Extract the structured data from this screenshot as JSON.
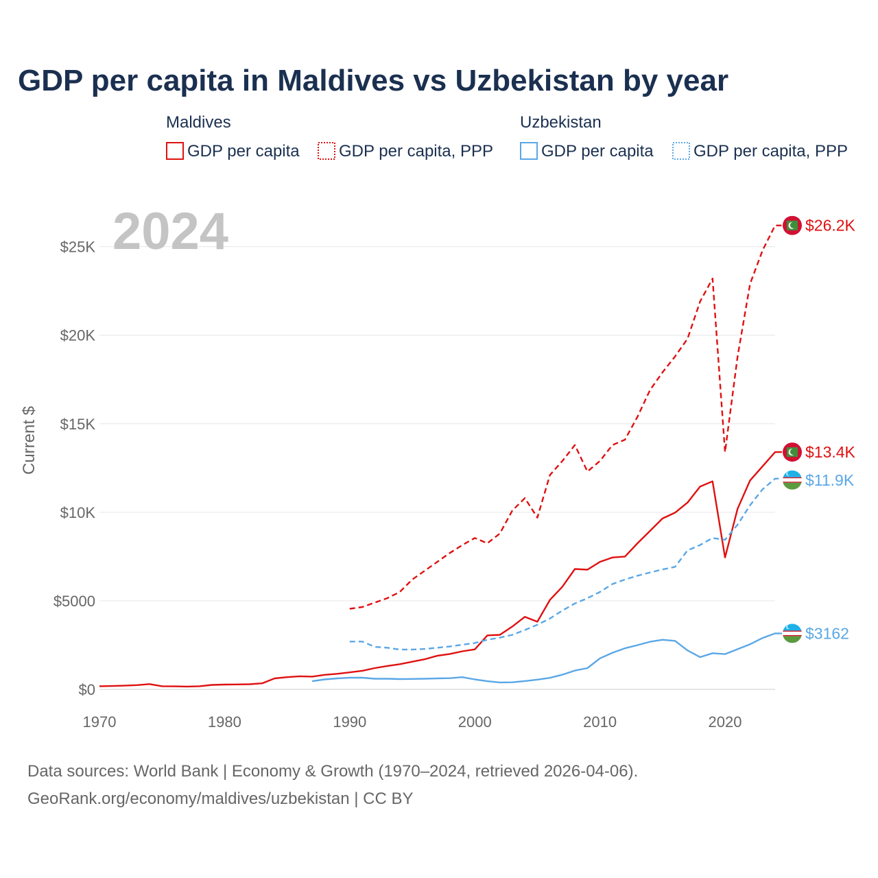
{
  "colors": {
    "maldives": "#e01010",
    "uzbekistan": "#5aa7e6"
  },
  "chart_data": {
    "type": "line",
    "title": "GDP per capita in Maldives vs Uzbekistan by year",
    "year_label": "2024",
    "xlabel": "",
    "ylabel": "Current $",
    "xlim": [
      1970,
      2024
    ],
    "ylim": [
      0,
      27000
    ],
    "x_ticks": [
      1970,
      1980,
      1990,
      2000,
      2010,
      2020
    ],
    "x_tick_labels": [
      "1970",
      "1980",
      "1990",
      "2000",
      "2010",
      "2020"
    ],
    "y_ticks": [
      0,
      5000,
      10000,
      15000,
      20000,
      25000
    ],
    "y_tick_labels": [
      "$0",
      "$5000",
      "$10K",
      "$15K",
      "$20K",
      "$25K"
    ],
    "legend": {
      "groups": [
        {
          "name": "Maldives",
          "entries": [
            {
              "label": "GDP per capita",
              "series": "mv_gdp",
              "style": "solid"
            },
            {
              "label": "GDP per capita, PPP",
              "series": "mv_ppp",
              "style": "dotted"
            }
          ]
        },
        {
          "name": "Uzbekistan",
          "entries": [
            {
              "label": "GDP per capita",
              "series": "uz_gdp",
              "style": "solid"
            },
            {
              "label": "GDP per capita, PPP",
              "series": "uz_ppp",
              "style": "dotted"
            }
          ]
        }
      ]
    },
    "series": [
      {
        "id": "mv_ppp",
        "name": "Maldives — GDP per capita, PPP",
        "country": "maldives",
        "dash": "dashed",
        "end_label": "$26.2K",
        "x": [
          1990,
          1991,
          1992,
          1993,
          1994,
          1995,
          1996,
          1997,
          1998,
          1999,
          2000,
          2001,
          2002,
          2003,
          2004,
          2005,
          2006,
          2007,
          2008,
          2009,
          2010,
          2011,
          2012,
          2013,
          2014,
          2015,
          2016,
          2017,
          2018,
          2019,
          2020,
          2021,
          2022,
          2023,
          2024
        ],
        "values": [
          4550,
          4650,
          4900,
          5150,
          5500,
          6200,
          6700,
          7200,
          7700,
          8150,
          8550,
          8250,
          8800,
          10100,
          10800,
          9700,
          12100,
          12900,
          13800,
          12300,
          12900,
          13800,
          14100,
          15400,
          16900,
          17900,
          18800,
          19800,
          21900,
          23200,
          13400,
          18800,
          22900,
          24800,
          26200
        ]
      },
      {
        "id": "mv_gdp",
        "name": "Maldives — GDP per capita",
        "country": "maldives",
        "dash": "solid",
        "end_label": "$13.4K",
        "x": [
          1970,
          1971,
          1972,
          1973,
          1974,
          1975,
          1976,
          1977,
          1978,
          1979,
          1980,
          1981,
          1982,
          1983,
          1984,
          1985,
          1986,
          1987,
          1988,
          1989,
          1990,
          1991,
          1992,
          1993,
          1994,
          1995,
          1996,
          1997,
          1998,
          1999,
          2000,
          2001,
          2002,
          2003,
          2004,
          2005,
          2006,
          2007,
          2008,
          2009,
          2010,
          2011,
          2012,
          2013,
          2014,
          2015,
          2016,
          2017,
          2018,
          2019,
          2020,
          2021,
          2022,
          2023,
          2024
        ],
        "values": [
          180,
          190,
          210,
          240,
          300,
          180,
          170,
          160,
          180,
          250,
          270,
          280,
          290,
          340,
          620,
          690,
          740,
          720,
          820,
          880,
          960,
          1050,
          1200,
          1320,
          1420,
          1560,
          1700,
          1900,
          2000,
          2150,
          2260,
          3050,
          3080,
          3550,
          4100,
          3820,
          5050,
          5800,
          6800,
          6760,
          7200,
          7450,
          7500,
          8250,
          8950,
          9650,
          9980,
          10550,
          11450,
          11750,
          7450,
          10200,
          11800,
          12600,
          13400
        ]
      },
      {
        "id": "uz_ppp",
        "name": "Uzbekistan — GDP per capita, PPP",
        "country": "uzbekistan",
        "dash": "dashed",
        "end_label": "$11.9K",
        "x": [
          1990,
          1991,
          1992,
          1993,
          1994,
          1995,
          1996,
          1997,
          1998,
          1999,
          2000,
          2001,
          2002,
          2003,
          2004,
          2005,
          2006,
          2007,
          2008,
          2009,
          2010,
          2011,
          2012,
          2013,
          2014,
          2015,
          2016,
          2017,
          2018,
          2019,
          2020,
          2021,
          2022,
          2023,
          2024
        ],
        "values": [
          2700,
          2700,
          2400,
          2350,
          2250,
          2250,
          2280,
          2350,
          2420,
          2520,
          2620,
          2800,
          2920,
          3080,
          3350,
          3650,
          4000,
          4450,
          4850,
          5150,
          5500,
          5950,
          6200,
          6420,
          6600,
          6770,
          6920,
          7850,
          8150,
          8550,
          8450,
          9300,
          10400,
          11300,
          11900
        ]
      },
      {
        "id": "uz_gdp",
        "name": "Uzbekistan — GDP per capita",
        "country": "uzbekistan",
        "dash": "solid",
        "end_label": "$3162",
        "x": [
          1987,
          1988,
          1989,
          1990,
          1991,
          1992,
          1993,
          1994,
          1995,
          1996,
          1997,
          1998,
          1999,
          2000,
          2001,
          2002,
          2003,
          2004,
          2005,
          2006,
          2007,
          2008,
          2009,
          2010,
          2011,
          2012,
          2013,
          2014,
          2015,
          2016,
          2017,
          2018,
          2019,
          2020,
          2021,
          2022,
          2023,
          2024
        ],
        "values": [
          460,
          560,
          620,
          660,
          660,
          600,
          600,
          580,
          590,
          600,
          620,
          630,
          690,
          560,
          460,
          390,
          400,
          470,
          550,
          650,
          830,
          1060,
          1200,
          1750,
          2070,
          2320,
          2500,
          2690,
          2800,
          2740,
          2200,
          1820,
          2040,
          1990,
          2270,
          2550,
          2900,
          3162
        ]
      }
    ]
  },
  "source": {
    "line1": "Data sources: World Bank | Economy & Growth (1970–2024, retrieved 2026-04-06).",
    "line2": "GeoRank.org/economy/maldives/uzbekistan | CC BY"
  }
}
